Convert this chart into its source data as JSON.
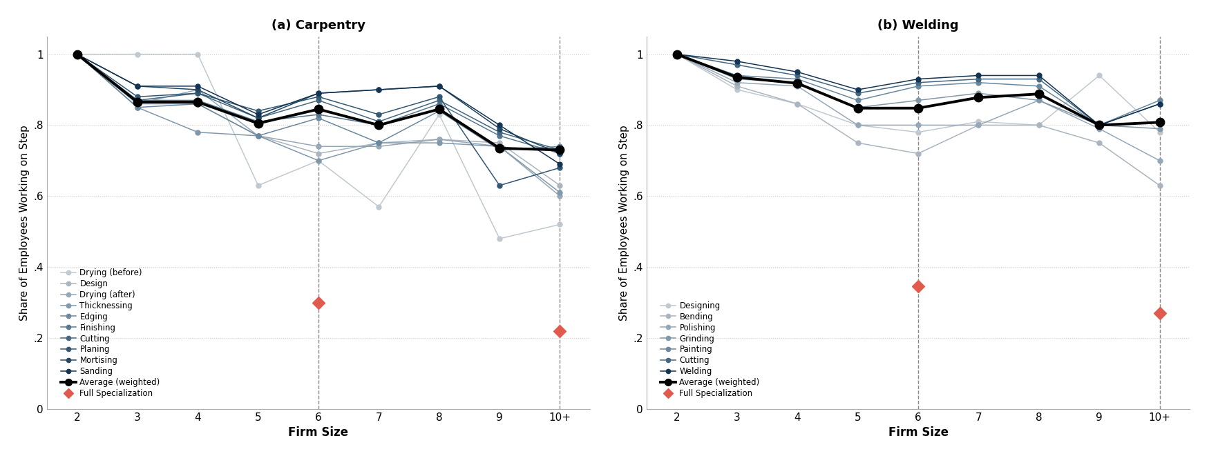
{
  "carpentry": {
    "title": "(a) Carpentry",
    "x_labels": [
      "2",
      "3",
      "4",
      "5",
      "6",
      "7",
      "8",
      "9",
      "10+"
    ],
    "x_vals": [
      0,
      1,
      2,
      3,
      4,
      5,
      6,
      7,
      8
    ],
    "dashed_lines": [
      4,
      8
    ],
    "series": {
      "Drying (before)": {
        "color": "#c0c8d0",
        "values": [
          1.0,
          1.0,
          1.0,
          0.63,
          0.7,
          0.57,
          0.83,
          0.48,
          0.52
        ]
      },
      "Design": {
        "color": "#aab5bf",
        "values": [
          1.0,
          0.86,
          0.86,
          0.77,
          0.72,
          0.75,
          0.76,
          0.75,
          0.63
        ]
      },
      "Drying (after)": {
        "color": "#95a8b8",
        "values": [
          1.0,
          0.86,
          0.9,
          0.77,
          0.74,
          0.74,
          0.76,
          0.74,
          0.6
        ]
      },
      "Thicknessing": {
        "color": "#8098aa",
        "values": [
          1.0,
          0.85,
          0.78,
          0.77,
          0.7,
          0.75,
          0.75,
          0.74,
          0.61
        ]
      },
      "Edging": {
        "color": "#6a889e",
        "values": [
          1.0,
          0.85,
          0.86,
          0.77,
          0.82,
          0.75,
          0.84,
          0.73,
          0.74
        ]
      },
      "Finishing": {
        "color": "#567892",
        "values": [
          1.0,
          0.87,
          0.87,
          0.81,
          0.83,
          0.8,
          0.86,
          0.77,
          0.72
        ]
      },
      "Cutting": {
        "color": "#446882",
        "values": [
          1.0,
          0.87,
          0.89,
          0.82,
          0.87,
          0.81,
          0.87,
          0.78,
          0.73
        ]
      },
      "Planing": {
        "color": "#325872",
        "values": [
          1.0,
          0.88,
          0.89,
          0.84,
          0.88,
          0.83,
          0.88,
          0.63,
          0.68
        ]
      },
      "Mortising": {
        "color": "#224862",
        "values": [
          1.0,
          0.91,
          0.9,
          0.82,
          0.89,
          0.9,
          0.91,
          0.79,
          0.72
        ]
      },
      "Sanding": {
        "color": "#143454",
        "values": [
          1.0,
          0.91,
          0.91,
          0.83,
          0.89,
          0.9,
          0.91,
          0.8,
          0.69
        ]
      }
    },
    "average": {
      "values": [
        1.0,
        0.865,
        0.865,
        0.805,
        0.845,
        0.8,
        0.845,
        0.735,
        0.73
      ]
    },
    "full_spec": {
      "x": [
        4,
        8
      ],
      "y": [
        0.3,
        0.22
      ]
    }
  },
  "welding": {
    "title": "(b) Welding",
    "x_labels": [
      "2",
      "3",
      "4",
      "5",
      "6",
      "7",
      "8",
      "9",
      "10+"
    ],
    "x_vals": [
      0,
      1,
      2,
      3,
      4,
      5,
      6,
      7,
      8
    ],
    "dashed_lines": [
      4,
      8
    ],
    "series": {
      "Designing": {
        "color": "#c0c8d0",
        "values": [
          1.0,
          0.9,
          0.86,
          0.8,
          0.78,
          0.81,
          0.8,
          0.94,
          0.78
        ]
      },
      "Bending": {
        "color": "#aab5bf",
        "values": [
          1.0,
          0.91,
          0.86,
          0.75,
          0.72,
          0.8,
          0.8,
          0.75,
          0.63
        ]
      },
      "Polishing": {
        "color": "#95a8b8",
        "values": [
          1.0,
          0.92,
          0.91,
          0.8,
          0.8,
          0.8,
          0.87,
          0.79,
          0.7
        ]
      },
      "Grinding": {
        "color": "#8098aa",
        "values": [
          1.0,
          0.93,
          0.92,
          0.85,
          0.87,
          0.89,
          0.87,
          0.8,
          0.79
        ]
      },
      "Painting": {
        "color": "#6a889e",
        "values": [
          1.0,
          0.94,
          0.93,
          0.87,
          0.91,
          0.92,
          0.91,
          0.8,
          0.87
        ]
      },
      "Cutting": {
        "color": "#446882",
        "values": [
          1.0,
          0.97,
          0.94,
          0.89,
          0.92,
          0.93,
          0.93,
          0.8,
          0.86
        ]
      },
      "Welding": {
        "color": "#143454",
        "values": [
          1.0,
          0.98,
          0.95,
          0.9,
          0.93,
          0.94,
          0.94,
          0.8,
          0.86
        ]
      }
    },
    "average": {
      "values": [
        1.0,
        0.935,
        0.918,
        0.848,
        0.848,
        0.878,
        0.888,
        0.8,
        0.808
      ]
    },
    "full_spec": {
      "x": [
        4,
        8
      ],
      "y": [
        0.345,
        0.27
      ]
    }
  },
  "ylabel": "Share of Employees Working on Step",
  "xlabel": "Firm Size",
  "ylim": [
    0,
    1.05
  ],
  "yticks": [
    0.0,
    0.2,
    0.4,
    0.6,
    0.8,
    1.0
  ],
  "ytick_labels": [
    "0",
    ".2",
    ".4",
    ".6",
    ".8",
    "1"
  ],
  "bg_color": "#ffffff",
  "grid_color": "#cccccc",
  "avg_color": "#000000",
  "full_spec_color": "#e05a4e",
  "marker_size": 5,
  "avg_marker_size": 9,
  "avg_lw": 2.8,
  "series_lw": 1.1
}
